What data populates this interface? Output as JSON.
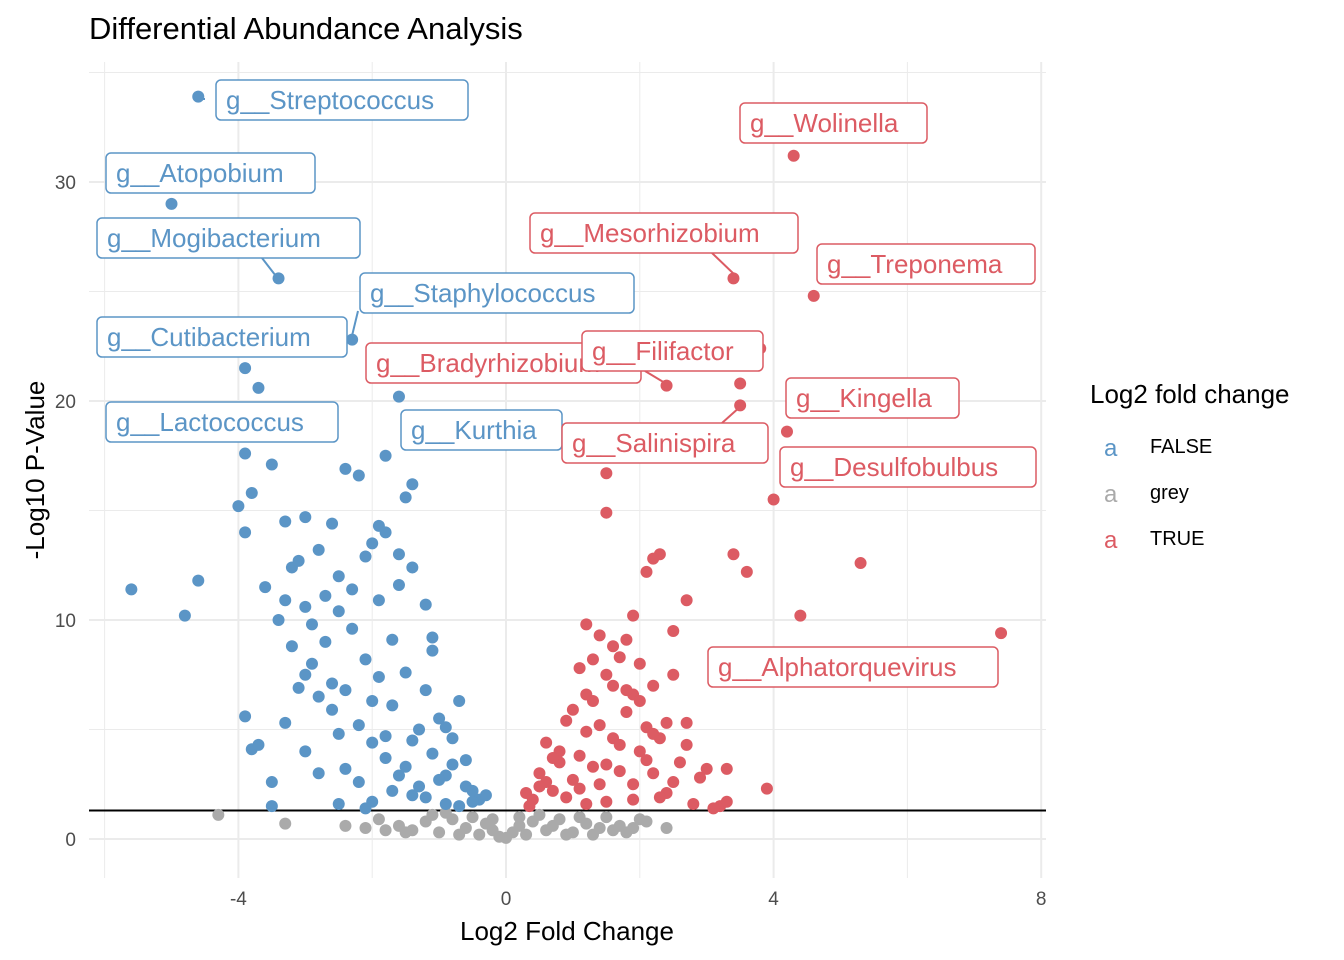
{
  "chart_data": {
    "type": "scatter",
    "title": "Differential Abundance Analysis",
    "xlabel": "Log2 Fold Change",
    "ylabel": "-Log10 P-Value",
    "xlim": [
      -6.2,
      8.0
    ],
    "ylim": [
      -1.5,
      35.5
    ],
    "xticks": [
      -4,
      0,
      4,
      8
    ],
    "xtick_labels": [
      "-4",
      "0",
      "4",
      "8"
    ],
    "yticks": [
      0,
      10,
      20,
      30
    ],
    "ytick_labels": [
      "0",
      "10",
      "20",
      "30"
    ],
    "grid": true,
    "threshold_y": 1.3,
    "legend": {
      "title": "Log2 fold change",
      "position": "right",
      "key_glyph": "a",
      "entries": [
        {
          "label": "FALSE",
          "color": "#5b95c6"
        },
        {
          "label": "grey",
          "color": "#aaaaaa"
        },
        {
          "label": "TRUE",
          "color": "#dc5b63"
        }
      ]
    },
    "series": [
      {
        "name": "FALSE",
        "color": "#5b95c6",
        "points": [
          [
            -4.6,
            33.9
          ],
          [
            -5.0,
            29.0
          ],
          [
            -3.4,
            25.6
          ],
          [
            -2.3,
            22.8
          ],
          [
            -3.9,
            21.5
          ],
          [
            -3.7,
            20.6
          ],
          [
            -1.6,
            20.2
          ],
          [
            -4.6,
            11.8
          ],
          [
            -5.6,
            11.4
          ],
          [
            -4.8,
            10.2
          ],
          [
            -3.9,
            17.6
          ],
          [
            -3.5,
            17.1
          ],
          [
            -4.0,
            15.2
          ],
          [
            -3.9,
            14.0
          ],
          [
            -3.8,
            15.8
          ],
          [
            -3.3,
            14.5
          ],
          [
            -3.0,
            14.7
          ],
          [
            -2.4,
            16.9
          ],
          [
            -2.2,
            16.6
          ],
          [
            -1.8,
            17.5
          ],
          [
            -1.5,
            15.6
          ],
          [
            -1.4,
            16.2
          ],
          [
            -2.0,
            13.5
          ],
          [
            -1.9,
            14.3
          ],
          [
            -1.6,
            13.0
          ],
          [
            -2.5,
            12.0
          ],
          [
            -2.8,
            13.2
          ],
          [
            -3.2,
            12.4
          ],
          [
            -3.6,
            11.5
          ],
          [
            -3.9,
            5.6
          ],
          [
            -3.8,
            4.1
          ],
          [
            -3.7,
            4.3
          ],
          [
            -3.5,
            2.6
          ],
          [
            -3.5,
            1.5
          ],
          [
            -3.4,
            10.0
          ],
          [
            -3.2,
            8.8
          ],
          [
            -3.0,
            7.5
          ],
          [
            -2.8,
            6.5
          ],
          [
            -2.6,
            5.9
          ],
          [
            -2.5,
            4.8
          ],
          [
            -2.4,
            3.2
          ],
          [
            -2.2,
            2.6
          ],
          [
            -2.0,
            1.7
          ],
          [
            -1.8,
            3.7
          ],
          [
            -1.6,
            2.9
          ],
          [
            -1.4,
            4.5
          ],
          [
            -1.2,
            6.8
          ],
          [
            -1.1,
            8.6
          ],
          [
            -1.0,
            5.5
          ],
          [
            -0.8,
            3.4
          ],
          [
            -0.7,
            6.3
          ],
          [
            -0.6,
            2.4
          ],
          [
            -0.5,
            2.2
          ],
          [
            -0.4,
            1.8
          ],
          [
            -0.3,
            2.0
          ],
          [
            -2.9,
            8.0
          ],
          [
            -2.7,
            9.0
          ],
          [
            -2.3,
            9.6
          ],
          [
            -2.1,
            8.2
          ],
          [
            -1.9,
            7.4
          ],
          [
            -1.7,
            6.1
          ],
          [
            -1.3,
            5.0
          ],
          [
            -1.1,
            3.9
          ],
          [
            -0.9,
            2.9
          ],
          [
            -3.1,
            6.9
          ],
          [
            -2.6,
            7.1
          ],
          [
            -2.4,
            6.8
          ],
          [
            -2.2,
            5.2
          ],
          [
            -2.0,
            4.4
          ],
          [
            -1.8,
            4.7
          ],
          [
            -1.5,
            3.3
          ],
          [
            -1.3,
            2.4
          ],
          [
            -1.2,
            1.9
          ],
          [
            -1.0,
            2.7
          ],
          [
            -0.9,
            1.6
          ],
          [
            -2.5,
            10.4
          ],
          [
            -2.3,
            11.4
          ],
          [
            -1.9,
            10.9
          ],
          [
            -1.7,
            9.1
          ],
          [
            -1.2,
            10.7
          ],
          [
            -1.1,
            9.2
          ],
          [
            -0.9,
            5.1
          ],
          [
            -0.8,
            4.6
          ],
          [
            -0.6,
            3.6
          ],
          [
            -3.3,
            5.3
          ],
          [
            -3.0,
            4.0
          ],
          [
            -2.8,
            3.0
          ],
          [
            -2.5,
            1.6
          ],
          [
            -2.1,
            1.4
          ],
          [
            -1.7,
            2.2
          ],
          [
            -1.4,
            2.0
          ],
          [
            -0.7,
            1.5
          ],
          [
            -0.5,
            1.7
          ],
          [
            -2.7,
            11.1
          ],
          [
            -3.0,
            10.6
          ],
          [
            -1.6,
            11.6
          ],
          [
            -1.4,
            12.4
          ],
          [
            -2.1,
            12.9
          ],
          [
            -1.8,
            14.0
          ],
          [
            -2.6,
            14.4
          ],
          [
            -3.1,
            12.7
          ],
          [
            -3.3,
            10.9
          ],
          [
            -2.9,
            9.8
          ],
          [
            -2.0,
            6.3
          ],
          [
            -1.5,
            7.6
          ]
        ]
      },
      {
        "name": "grey",
        "color": "#aaaaaa",
        "points": [
          [
            -4.3,
            1.1
          ],
          [
            -3.3,
            0.7
          ],
          [
            -2.4,
            0.6
          ],
          [
            -2.1,
            0.5
          ],
          [
            -1.9,
            0.9
          ],
          [
            -1.6,
            0.6
          ],
          [
            -1.4,
            0.4
          ],
          [
            -1.2,
            0.8
          ],
          [
            -1.0,
            0.3
          ],
          [
            -0.8,
            0.9
          ],
          [
            -0.6,
            0.5
          ],
          [
            -0.4,
            0.2
          ],
          [
            -0.3,
            0.7
          ],
          [
            -0.2,
            0.4
          ],
          [
            -0.1,
            0.1
          ],
          [
            0.0,
            0.05
          ],
          [
            0.1,
            0.3
          ],
          [
            0.2,
            0.6
          ],
          [
            0.3,
            0.2
          ],
          [
            0.4,
            0.8
          ],
          [
            0.6,
            0.4
          ],
          [
            0.8,
            0.9
          ],
          [
            1.0,
            0.3
          ],
          [
            1.2,
            0.7
          ],
          [
            1.4,
            0.5
          ],
          [
            1.5,
            1.0
          ],
          [
            1.7,
            0.6
          ],
          [
            1.8,
            0.3
          ],
          [
            2.0,
            0.9
          ],
          [
            2.1,
            0.8
          ],
          [
            2.4,
            0.5
          ],
          [
            -1.1,
            1.1
          ],
          [
            -0.9,
            1.2
          ],
          [
            -0.7,
            0.2
          ],
          [
            -0.5,
            1.0
          ],
          [
            0.5,
            1.1
          ],
          [
            0.7,
            0.6
          ],
          [
            0.9,
            0.2
          ],
          [
            1.1,
            1.0
          ],
          [
            1.3,
            0.2
          ],
          [
            -1.5,
            0.3
          ],
          [
            -1.8,
            0.4
          ],
          [
            1.6,
            0.4
          ],
          [
            1.9,
            0.5
          ],
          [
            -0.2,
            0.9
          ],
          [
            0.2,
            1.0
          ]
        ]
      },
      {
        "name": "TRUE",
        "color": "#dc5b63",
        "points": [
          [
            4.3,
            31.2
          ],
          [
            3.4,
            25.6
          ],
          [
            4.6,
            24.8
          ],
          [
            3.8,
            22.4
          ],
          [
            2.4,
            20.7
          ],
          [
            3.5,
            20.8
          ],
          [
            3.5,
            19.8
          ],
          [
            4.2,
            18.6
          ],
          [
            1.5,
            16.7
          ],
          [
            4.0,
            15.5
          ],
          [
            1.5,
            14.9
          ],
          [
            3.4,
            13.0
          ],
          [
            3.6,
            12.2
          ],
          [
            5.3,
            12.6
          ],
          [
            2.3,
            13.0
          ],
          [
            2.2,
            12.8
          ],
          [
            2.1,
            12.2
          ],
          [
            2.7,
            10.9
          ],
          [
            4.4,
            10.2
          ],
          [
            7.4,
            9.4
          ],
          [
            2.5,
            9.5
          ],
          [
            1.9,
            10.2
          ],
          [
            1.8,
            9.1
          ],
          [
            1.2,
            9.8
          ],
          [
            1.4,
            9.3
          ],
          [
            1.7,
            8.3
          ],
          [
            1.5,
            7.5
          ],
          [
            1.9,
            6.6
          ],
          [
            2.2,
            7.0
          ],
          [
            2.5,
            7.5
          ],
          [
            2.4,
            5.3
          ],
          [
            2.7,
            5.3
          ],
          [
            2.3,
            4.6
          ],
          [
            2.7,
            4.3
          ],
          [
            3.0,
            3.2
          ],
          [
            3.3,
            3.2
          ],
          [
            3.9,
            2.3
          ],
          [
            3.2,
            1.5
          ],
          [
            3.1,
            1.4
          ],
          [
            2.6,
            3.5
          ],
          [
            2.4,
            2.1
          ],
          [
            2.2,
            3.0
          ],
          [
            2.0,
            4.0
          ],
          [
            1.9,
            1.8
          ],
          [
            1.8,
            5.8
          ],
          [
            1.6,
            4.6
          ],
          [
            1.5,
            3.4
          ],
          [
            1.4,
            2.5
          ],
          [
            1.3,
            6.3
          ],
          [
            1.2,
            4.9
          ],
          [
            1.1,
            3.8
          ],
          [
            1.0,
            2.7
          ],
          [
            0.9,
            5.4
          ],
          [
            0.8,
            3.5
          ],
          [
            0.7,
            2.2
          ],
          [
            0.6,
            4.4
          ],
          [
            0.5,
            3.0
          ],
          [
            0.4,
            1.8
          ],
          [
            0.3,
            2.1
          ],
          [
            0.35,
            1.5
          ],
          [
            1.1,
            7.8
          ],
          [
            1.3,
            8.2
          ],
          [
            1.6,
            7.0
          ],
          [
            2.0,
            6.3
          ],
          [
            2.1,
            5.1
          ],
          [
            1.7,
            3.1
          ],
          [
            1.9,
            2.5
          ],
          [
            2.3,
            1.9
          ],
          [
            1.5,
            1.7
          ],
          [
            1.2,
            1.6
          ],
          [
            0.9,
            1.9
          ],
          [
            0.6,
            2.6
          ],
          [
            1.0,
            5.9
          ],
          [
            1.4,
            5.2
          ],
          [
            1.7,
            4.3
          ],
          [
            2.1,
            3.6
          ],
          [
            2.5,
            2.6
          ],
          [
            0.8,
            4.0
          ],
          [
            1.1,
            2.3
          ],
          [
            1.3,
            3.3
          ],
          [
            2.9,
            2.8
          ],
          [
            3.3,
            1.7
          ],
          [
            2.8,
            1.6
          ],
          [
            1.6,
            8.8
          ],
          [
            2.0,
            8.0
          ],
          [
            0.7,
            3.7
          ],
          [
            0.5,
            2.4
          ],
          [
            1.2,
            6.6
          ],
          [
            1.8,
            6.8
          ],
          [
            2.2,
            4.8
          ]
        ]
      }
    ],
    "labels": [
      {
        "text": "g__Streptococcus",
        "group": "FALSE"
      },
      {
        "text": "g__Atopobium",
        "group": "FALSE"
      },
      {
        "text": "g__Mogibacterium",
        "group": "FALSE"
      },
      {
        "text": "g__Staphylococcus",
        "group": "FALSE"
      },
      {
        "text": "g__Cutibacterium",
        "group": "FALSE"
      },
      {
        "text": "g__Lactococcus",
        "group": "FALSE"
      },
      {
        "text": "g__Kurthia",
        "group": "FALSE"
      },
      {
        "text": "g__Wolinella",
        "group": "TRUE"
      },
      {
        "text": "g__Mesorhizobium",
        "group": "TRUE"
      },
      {
        "text": "g__Treponema",
        "group": "TRUE"
      },
      {
        "text": "g__Bradyrhizobium",
        "group": "TRUE"
      },
      {
        "text": "g__Filifactor",
        "group": "TRUE"
      },
      {
        "text": "g__Kingella",
        "group": "TRUE"
      },
      {
        "text": "g__Salinispira",
        "group": "TRUE"
      },
      {
        "text": "g__Desulfobulbus",
        "group": "TRUE"
      },
      {
        "text": "g__Alphatorquevirus",
        "group": "TRUE"
      }
    ]
  }
}
